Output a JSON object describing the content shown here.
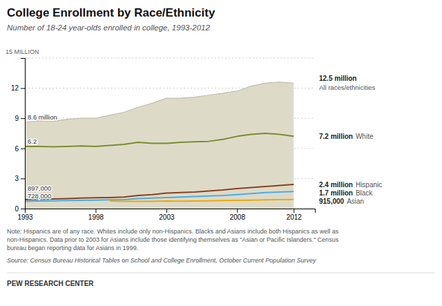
{
  "chart_data": {
    "type": "line",
    "title": "College Enrollment by Race/Ethnicity",
    "subtitle": "Number of 18-24 year-olds enrolled in college, 1993-2012",
    "x": [
      1993,
      1994,
      1995,
      1996,
      1997,
      1998,
      1999,
      2000,
      2001,
      2002,
      2003,
      2004,
      2005,
      2006,
      2007,
      2008,
      2009,
      2010,
      2011,
      2012
    ],
    "xlim": [
      1993,
      2013.5
    ],
    "xticks": [
      1993,
      1998,
      2003,
      2008,
      2012
    ],
    "ylim": [
      0,
      15
    ],
    "yticks": [
      0,
      3,
      6,
      9,
      12,
      {
        "value": 15,
        "label": "15 MILLION"
      }
    ],
    "grid": true,
    "series": [
      {
        "name": "All races/ethnicities",
        "type": "area",
        "color": "#dddbc8",
        "values": [
          8.6,
          8.75,
          8.7,
          8.9,
          9.0,
          9.0,
          9.3,
          9.6,
          10.1,
          10.5,
          11.0,
          11.0,
          11.1,
          11.3,
          11.5,
          11.7,
          12.2,
          12.5,
          12.6,
          12.5
        ],
        "value_labels": [
          "8.6 million",
          null,
          null,
          null,
          null,
          null,
          null,
          null,
          null,
          null,
          null,
          null,
          null,
          null,
          null,
          null,
          null,
          null,
          null,
          "12.5 million"
        ]
      },
      {
        "name": "White",
        "type": "line",
        "color": "#7a8c2e",
        "values": [
          6.2,
          6.2,
          6.15,
          6.2,
          6.25,
          6.2,
          6.3,
          6.4,
          6.6,
          6.5,
          6.5,
          6.6,
          6.65,
          6.7,
          6.9,
          7.2,
          7.4,
          7.5,
          7.4,
          7.2
        ],
        "value_labels": [
          "6.2",
          null,
          null,
          null,
          null,
          null,
          null,
          null,
          null,
          null,
          null,
          null,
          null,
          null,
          null,
          null,
          null,
          null,
          null,
          "7.2 million"
        ]
      },
      {
        "name": "Hispanic",
        "type": "line",
        "color": "#8b4020",
        "values": [
          0.897,
          0.93,
          0.96,
          1.0,
          1.05,
          1.08,
          1.1,
          1.15,
          1.3,
          1.4,
          1.55,
          1.6,
          1.65,
          1.75,
          1.85,
          2.0,
          2.1,
          2.2,
          2.3,
          2.4
        ],
        "value_labels": [
          "897,000",
          null,
          null,
          null,
          null,
          null,
          null,
          null,
          null,
          null,
          null,
          null,
          null,
          null,
          null,
          null,
          null,
          null,
          null,
          "2.4 million"
        ]
      },
      {
        "name": "Black",
        "type": "line",
        "color": "#4aace8",
        "values": [
          0.728,
          0.75,
          0.77,
          0.8,
          0.82,
          0.85,
          0.87,
          0.9,
          1.0,
          1.05,
          1.1,
          1.15,
          1.2,
          1.25,
          1.3,
          1.4,
          1.5,
          1.6,
          1.65,
          1.7
        ],
        "value_labels": [
          "728,000",
          null,
          null,
          null,
          null,
          null,
          null,
          null,
          null,
          null,
          null,
          null,
          null,
          null,
          null,
          null,
          null,
          null,
          null,
          "1.7 million"
        ]
      },
      {
        "name": "Asian",
        "type": "line",
        "color": "#f0a800",
        "values": [
          null,
          null,
          null,
          null,
          null,
          null,
          0.75,
          0.72,
          0.73,
          0.72,
          0.75,
          0.74,
          0.76,
          0.78,
          0.8,
          0.82,
          0.85,
          0.88,
          0.9,
          0.915
        ],
        "value_labels": [
          null,
          null,
          null,
          null,
          null,
          null,
          null,
          null,
          null,
          null,
          null,
          null,
          null,
          null,
          null,
          null,
          null,
          null,
          null,
          "915,000"
        ]
      }
    ],
    "notes": [
      "Note: Hispanics are of any race. Whites include only non-Hispanics. Blacks and Asians include both Hispanics as well as",
      "non-Hispanics. Data prior to 2003 for Asians include those identifying themselves as \"Asian or Pacific Islanders.\" Census",
      "bureau began reporting data for Asians in 1999."
    ],
    "source": "Source: Census Bureau Historical Tables on School and College Enrollment, October Current Population Survey",
    "footer": "PEW RESEARCH CENTER"
  }
}
